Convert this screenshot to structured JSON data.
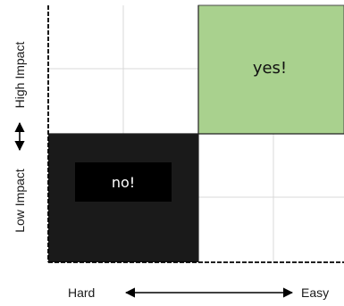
{
  "matrix": {
    "high_easy_label": "yes!",
    "low_hard_label": "no!",
    "high_easy_color": "#a9d18e",
    "low_hard_color": "#1a1a1a",
    "no_box_color": "#000000"
  },
  "axes": {
    "y_high": "High Impact",
    "y_low": "Low Impact",
    "x_left": "Hard",
    "x_right": "Easy"
  }
}
